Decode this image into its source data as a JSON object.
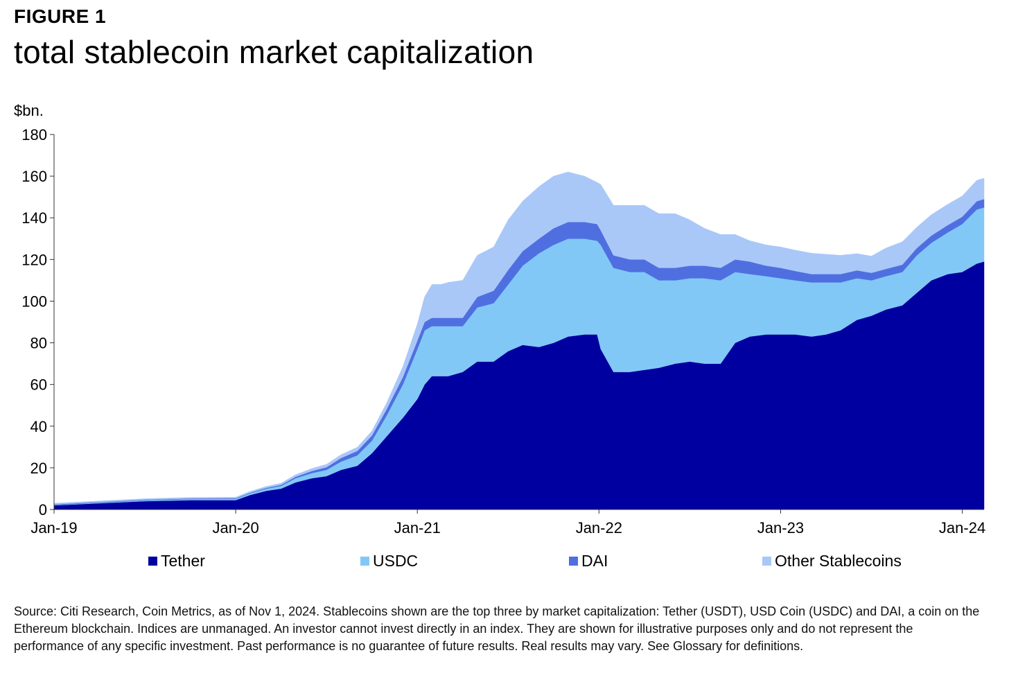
{
  "figure_label": "FIGURE 1",
  "title": "total stablecoin market capitalization",
  "source_text": "Source: Citi Research, Coin Metrics, as of Nov 1, 2024. Stablecoins shown are the top three by market capitalization: Tether (USDT), USD Coin (USDC) and DAI, a coin on the Ethereum blockchain. Indices are unmanaged. An investor cannot invest directly in an index. They are shown for illustrative purposes only and do not represent the performance of any specific investment. Past performance is no guarantee of future results. Real results may vary. See Glossary for definitions.",
  "colors": {
    "tether": "#0000a0",
    "usdc": "#82c8f7",
    "dai": "#4f6fe0",
    "other": "#a9c8f8",
    "axis": "#333333"
  },
  "chart_data": {
    "type": "area",
    "stacked": true,
    "title": "total stablecoin market capitalization",
    "ylabel": "$bn.",
    "xlabel": "",
    "ylim": [
      0,
      180
    ],
    "yticks": [
      "0",
      "20",
      "40",
      "60",
      "80",
      "100",
      "120",
      "140",
      "160",
      "180"
    ],
    "xlim": [
      2019.0,
      2024.12
    ],
    "xticks": [
      {
        "label": "Jan-19",
        "x": 2019.0
      },
      {
        "label": "Jan-20",
        "x": 2020.0
      },
      {
        "label": "Jan-21",
        "x": 2021.0
      },
      {
        "label": "Jan-22",
        "x": 2022.0
      },
      {
        "label": "Jan-23",
        "x": 2023.0
      },
      {
        "label": "Jan-24",
        "x": 2024.0
      }
    ],
    "legend_position": "bottom",
    "x": [
      2019.0,
      2019.25,
      2019.5,
      2019.75,
      2020.0,
      2020.08,
      2020.17,
      2020.25,
      2020.33,
      2020.42,
      2020.5,
      2020.58,
      2020.67,
      2020.75,
      2020.83,
      2020.92,
      2021.0,
      2021.04,
      2021.08,
      2021.13,
      2021.17,
      2021.25,
      2021.33,
      2021.42,
      2021.5,
      2021.58,
      2021.67,
      2021.75,
      2021.83,
      2021.92,
      2021.99,
      2022.01,
      2022.08,
      2022.17,
      2022.25,
      2022.33,
      2022.42,
      2022.5,
      2022.58,
      2022.67,
      2022.75,
      2022.83,
      2022.92,
      2023.0,
      2023.08,
      2023.17,
      2023.25,
      2023.33,
      2023.42,
      2023.5,
      2023.58,
      2023.67,
      2023.75,
      2023.83,
      2023.92,
      2024.0,
      2024.08,
      2024.12
    ],
    "series": [
      {
        "name": "Tether",
        "color": "#0000a0",
        "values": [
          2,
          3,
          4,
          4.5,
          4.5,
          7,
          9,
          10,
          13,
          15,
          16,
          19,
          21,
          27,
          35,
          44,
          53,
          60,
          64,
          64,
          64,
          66,
          71,
          71,
          76,
          79,
          78,
          80,
          83,
          84,
          84,
          77,
          66,
          66,
          67,
          68,
          70,
          71,
          70,
          70,
          80,
          83,
          84,
          84,
          84,
          83,
          84,
          86,
          91,
          93,
          96,
          98,
          104,
          110,
          113,
          114,
          118,
          119
        ]
      },
      {
        "name": "USDC",
        "color": "#82c8f7",
        "values": [
          0.2,
          0.3,
          0.4,
          0.5,
          0.6,
          0.8,
          1,
          1.3,
          2,
          2.5,
          3,
          4,
          5,
          6,
          10,
          16,
          24,
          26,
          24,
          24,
          24,
          22,
          26,
          28,
          32,
          38,
          45,
          47,
          47,
          46,
          45,
          50,
          50,
          48,
          47,
          42,
          40,
          40,
          41,
          40,
          34,
          30,
          28,
          27,
          26,
          26,
          25,
          23,
          20,
          17,
          16,
          16,
          18,
          18,
          20,
          23,
          26,
          26
        ]
      },
      {
        "name": "DAI",
        "color": "#4f6fe0",
        "values": [
          0.3,
          0.3,
          0.3,
          0.3,
          0.3,
          0.3,
          0.4,
          0.5,
          0.7,
          1,
          1.3,
          1.7,
          2.1,
          2.5,
          3,
          3.5,
          4,
          4,
          4,
          4,
          4,
          4,
          5,
          6,
          7,
          7,
          7,
          8,
          8,
          8,
          8,
          7,
          6,
          6,
          6,
          6,
          6,
          6,
          6,
          6,
          6,
          6,
          5,
          5,
          4.5,
          4,
          4,
          4,
          3.8,
          3.6,
          3.5,
          3.5,
          3.5,
          3.5,
          3.5,
          3.5,
          4,
          4
        ]
      },
      {
        "name": "Other Stablecoins",
        "color": "#a9c8f8",
        "values": [
          0.5,
          0.5,
          0.5,
          0.5,
          0.5,
          0.6,
          0.7,
          0.8,
          1,
          1.2,
          1.4,
          1.6,
          1.8,
          2.2,
          3,
          5,
          8,
          12,
          16,
          16,
          17,
          18,
          20,
          21,
          24,
          24,
          25,
          25,
          24,
          22,
          20,
          22,
          24,
          26,
          26,
          26,
          26,
          22,
          18,
          16,
          12,
          10,
          10,
          10,
          10,
          10,
          9.5,
          9,
          8,
          8,
          10,
          11,
          10,
          10,
          10,
          10,
          10,
          10
        ]
      }
    ],
    "legend": [
      "Tether",
      "USDC",
      "DAI",
      "Other Stablecoins"
    ]
  }
}
